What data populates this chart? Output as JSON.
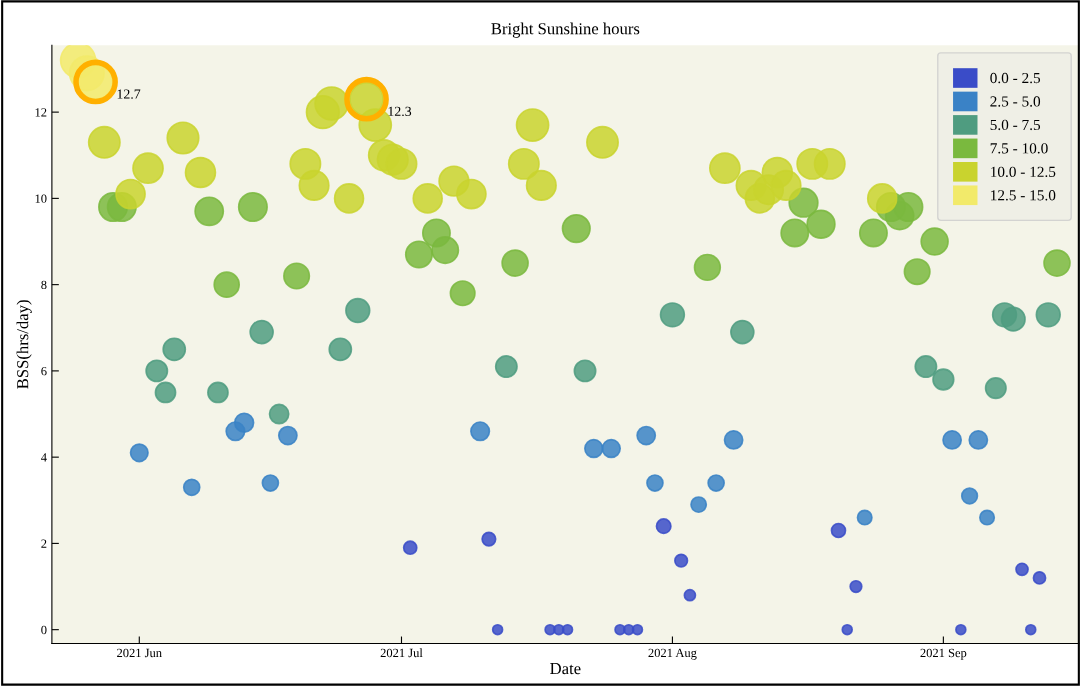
{
  "chart_data": {
    "type": "bubble",
    "title": "Bright Sunshine hours",
    "xlabel": "Date",
    "ylabel": "BSS(hrs/day)",
    "xlim": [
      "2021-05-22",
      "2021-09-16T12:00"
    ],
    "xticks": [
      {
        "value": "2021-06-01",
        "label": "2021 Jun"
      },
      {
        "value": "2021-07-01",
        "label": "2021 Jul"
      },
      {
        "value": "2021-08-01",
        "label": "2021 Aug"
      },
      {
        "value": "2021-09-01",
        "label": "2021 Sep"
      }
    ],
    "ylim": [
      -0.32,
      13.55
    ],
    "yticks": [
      0,
      2,
      4,
      6,
      8,
      10,
      12
    ],
    "grid": false,
    "legend": "top right",
    "marker": "circle",
    "series": [
      {
        "name": "0.0 - 2.5",
        "color": "#3a4cc8",
        "x": [
          "2021-07-02",
          "2021-07-11",
          "2021-07-12",
          "2021-07-18",
          "2021-07-19",
          "2021-07-20",
          "2021-07-26",
          "2021-07-27",
          "2021-07-28",
          "2021-07-31",
          "2021-08-02",
          "2021-08-03",
          "2021-08-20",
          "2021-08-21",
          "2021-08-22",
          "2021-09-03",
          "2021-09-10",
          "2021-09-11",
          "2021-09-12"
        ],
        "values": [
          1.9,
          2.1,
          0,
          0,
          0,
          0,
          0,
          0,
          0,
          2.4,
          1.6,
          0.8,
          2.3,
          0,
          1.0,
          0,
          1.4,
          0,
          1.2
        ],
        "sizes": [
          0.14,
          0.15,
          0.08,
          0.08,
          0.08,
          0.08,
          0.08,
          0.08,
          0.08,
          0.17,
          0.13,
          0.1,
          0.16,
          0.08,
          0.11,
          0.08,
          0.12,
          0.08,
          0.12
        ]
      },
      {
        "name": "2.5 - 5.0",
        "color": "#3a82c6",
        "x": [
          "2021-06-01",
          "2021-06-07",
          "2021-06-12",
          "2021-06-13",
          "2021-06-16",
          "2021-06-18",
          "2021-07-10",
          "2021-07-23",
          "2021-07-25",
          "2021-07-29",
          "2021-07-30",
          "2021-08-04",
          "2021-08-06",
          "2021-08-08",
          "2021-08-23",
          "2021-09-02",
          "2021-09-04",
          "2021-09-05",
          "2021-09-06"
        ],
        "values": [
          4.1,
          3.3,
          4.6,
          4.8,
          3.4,
          4.5,
          4.6,
          4.2,
          4.2,
          4.5,
          3.4,
          2.9,
          3.4,
          4.4,
          2.6,
          4.4,
          3.1,
          4.4,
          2.6
        ],
        "sizes": [
          0.25,
          0.21,
          0.28,
          0.29,
          0.21,
          0.27,
          0.28,
          0.26,
          0.26,
          0.27,
          0.21,
          0.19,
          0.21,
          0.27,
          0.17,
          0.27,
          0.2,
          0.27,
          0.17
        ]
      },
      {
        "name": "5.0 - 7.5",
        "color": "#4f9c80",
        "x": [
          "2021-06-03",
          "2021-06-04",
          "2021-06-05",
          "2021-06-10",
          "2021-06-15",
          "2021-06-17",
          "2021-06-24",
          "2021-06-26",
          "2021-07-13",
          "2021-07-22",
          "2021-08-01",
          "2021-08-09",
          "2021-08-30",
          "2021-09-01",
          "2021-09-07",
          "2021-09-08",
          "2021-09-09",
          "2021-09-13"
        ],
        "values": [
          6.0,
          5.5,
          6.5,
          5.5,
          6.9,
          5.0,
          6.5,
          7.4,
          6.1,
          6.0,
          7.3,
          6.9,
          6.1,
          5.8,
          5.6,
          7.3,
          7.2,
          7.3
        ],
        "sizes": [
          0.37,
          0.33,
          0.4,
          0.33,
          0.43,
          0.3,
          0.4,
          0.46,
          0.37,
          0.37,
          0.46,
          0.43,
          0.37,
          0.35,
          0.34,
          0.46,
          0.45,
          0.46
        ]
      },
      {
        "name": "7.5 - 10.0",
        "color": "#7ab93e",
        "x": [
          "2021-05-29",
          "2021-05-30",
          "2021-06-09",
          "2021-06-11",
          "2021-06-14",
          "2021-06-19",
          "2021-07-03",
          "2021-07-05",
          "2021-07-06",
          "2021-07-08",
          "2021-07-14",
          "2021-07-21",
          "2021-08-05",
          "2021-08-15",
          "2021-08-16",
          "2021-08-18",
          "2021-08-24",
          "2021-08-26",
          "2021-08-27",
          "2021-08-28",
          "2021-08-29",
          "2021-08-31",
          "2021-09-14"
        ],
        "values": [
          9.8,
          9.8,
          9.7,
          8.0,
          9.8,
          8.2,
          8.7,
          9.2,
          8.8,
          7.8,
          8.5,
          9.3,
          8.4,
          9.2,
          9.9,
          9.4,
          9.2,
          9.8,
          9.6,
          9.8,
          8.3,
          9.0,
          8.5
        ],
        "sizes": [
          0.66,
          0.66,
          0.65,
          0.51,
          0.66,
          0.53,
          0.57,
          0.61,
          0.57,
          0.49,
          0.55,
          0.62,
          0.54,
          0.61,
          0.67,
          0.63,
          0.61,
          0.66,
          0.64,
          0.66,
          0.53,
          0.59,
          0.55
        ]
      },
      {
        "name": "10.0 - 12.5",
        "color": "#c9d32e",
        "x": [
          "2021-05-28",
          "2021-05-31",
          "2021-06-02",
          "2021-06-06",
          "2021-06-08",
          "2021-06-20",
          "2021-06-21",
          "2021-06-22",
          "2021-06-23",
          "2021-06-25",
          "2021-06-27",
          "2021-06-28",
          "2021-06-29",
          "2021-06-30",
          "2021-07-01",
          "2021-07-04",
          "2021-07-07",
          "2021-07-09",
          "2021-07-15",
          "2021-07-16",
          "2021-07-17",
          "2021-07-24",
          "2021-08-07",
          "2021-08-10",
          "2021-08-11",
          "2021-08-12",
          "2021-08-13",
          "2021-08-14",
          "2021-08-17",
          "2021-08-19",
          "2021-08-25"
        ],
        "values": [
          11.3,
          10.1,
          10.7,
          11.4,
          10.6,
          10.8,
          10.3,
          12.0,
          12.2,
          10.0,
          12.3,
          11.7,
          11.0,
          10.9,
          10.8,
          10.0,
          10.4,
          10.1,
          10.8,
          11.7,
          10.3,
          11.3,
          10.7,
          10.3,
          10.0,
          10.2,
          10.6,
          10.3,
          10.8,
          10.8,
          10.0
        ],
        "sizes": [
          0.8,
          0.69,
          0.74,
          0.81,
          0.73,
          0.75,
          0.71,
          0.87,
          0.89,
          0.68,
          0.9,
          0.84,
          0.77,
          0.76,
          0.75,
          0.68,
          0.72,
          0.69,
          0.75,
          0.84,
          0.71,
          0.8,
          0.74,
          0.71,
          0.68,
          0.7,
          0.73,
          0.71,
          0.75,
          0.75,
          0.68
        ]
      },
      {
        "name": "12.5 - 15.0",
        "color": "#f2ea6a",
        "x": [
          "2021-05-25",
          "2021-05-26",
          "2021-05-27"
        ],
        "values": [
          13.2,
          12.9,
          12.7
        ],
        "sizes": [
          1,
          0.97,
          0.95
        ]
      }
    ],
    "annotations": [
      {
        "text": "12.7",
        "x": "2021-05-27",
        "y": 12.7
      },
      {
        "text": "12.3",
        "x": "2021-06-27",
        "y": 12.3
      }
    ]
  }
}
